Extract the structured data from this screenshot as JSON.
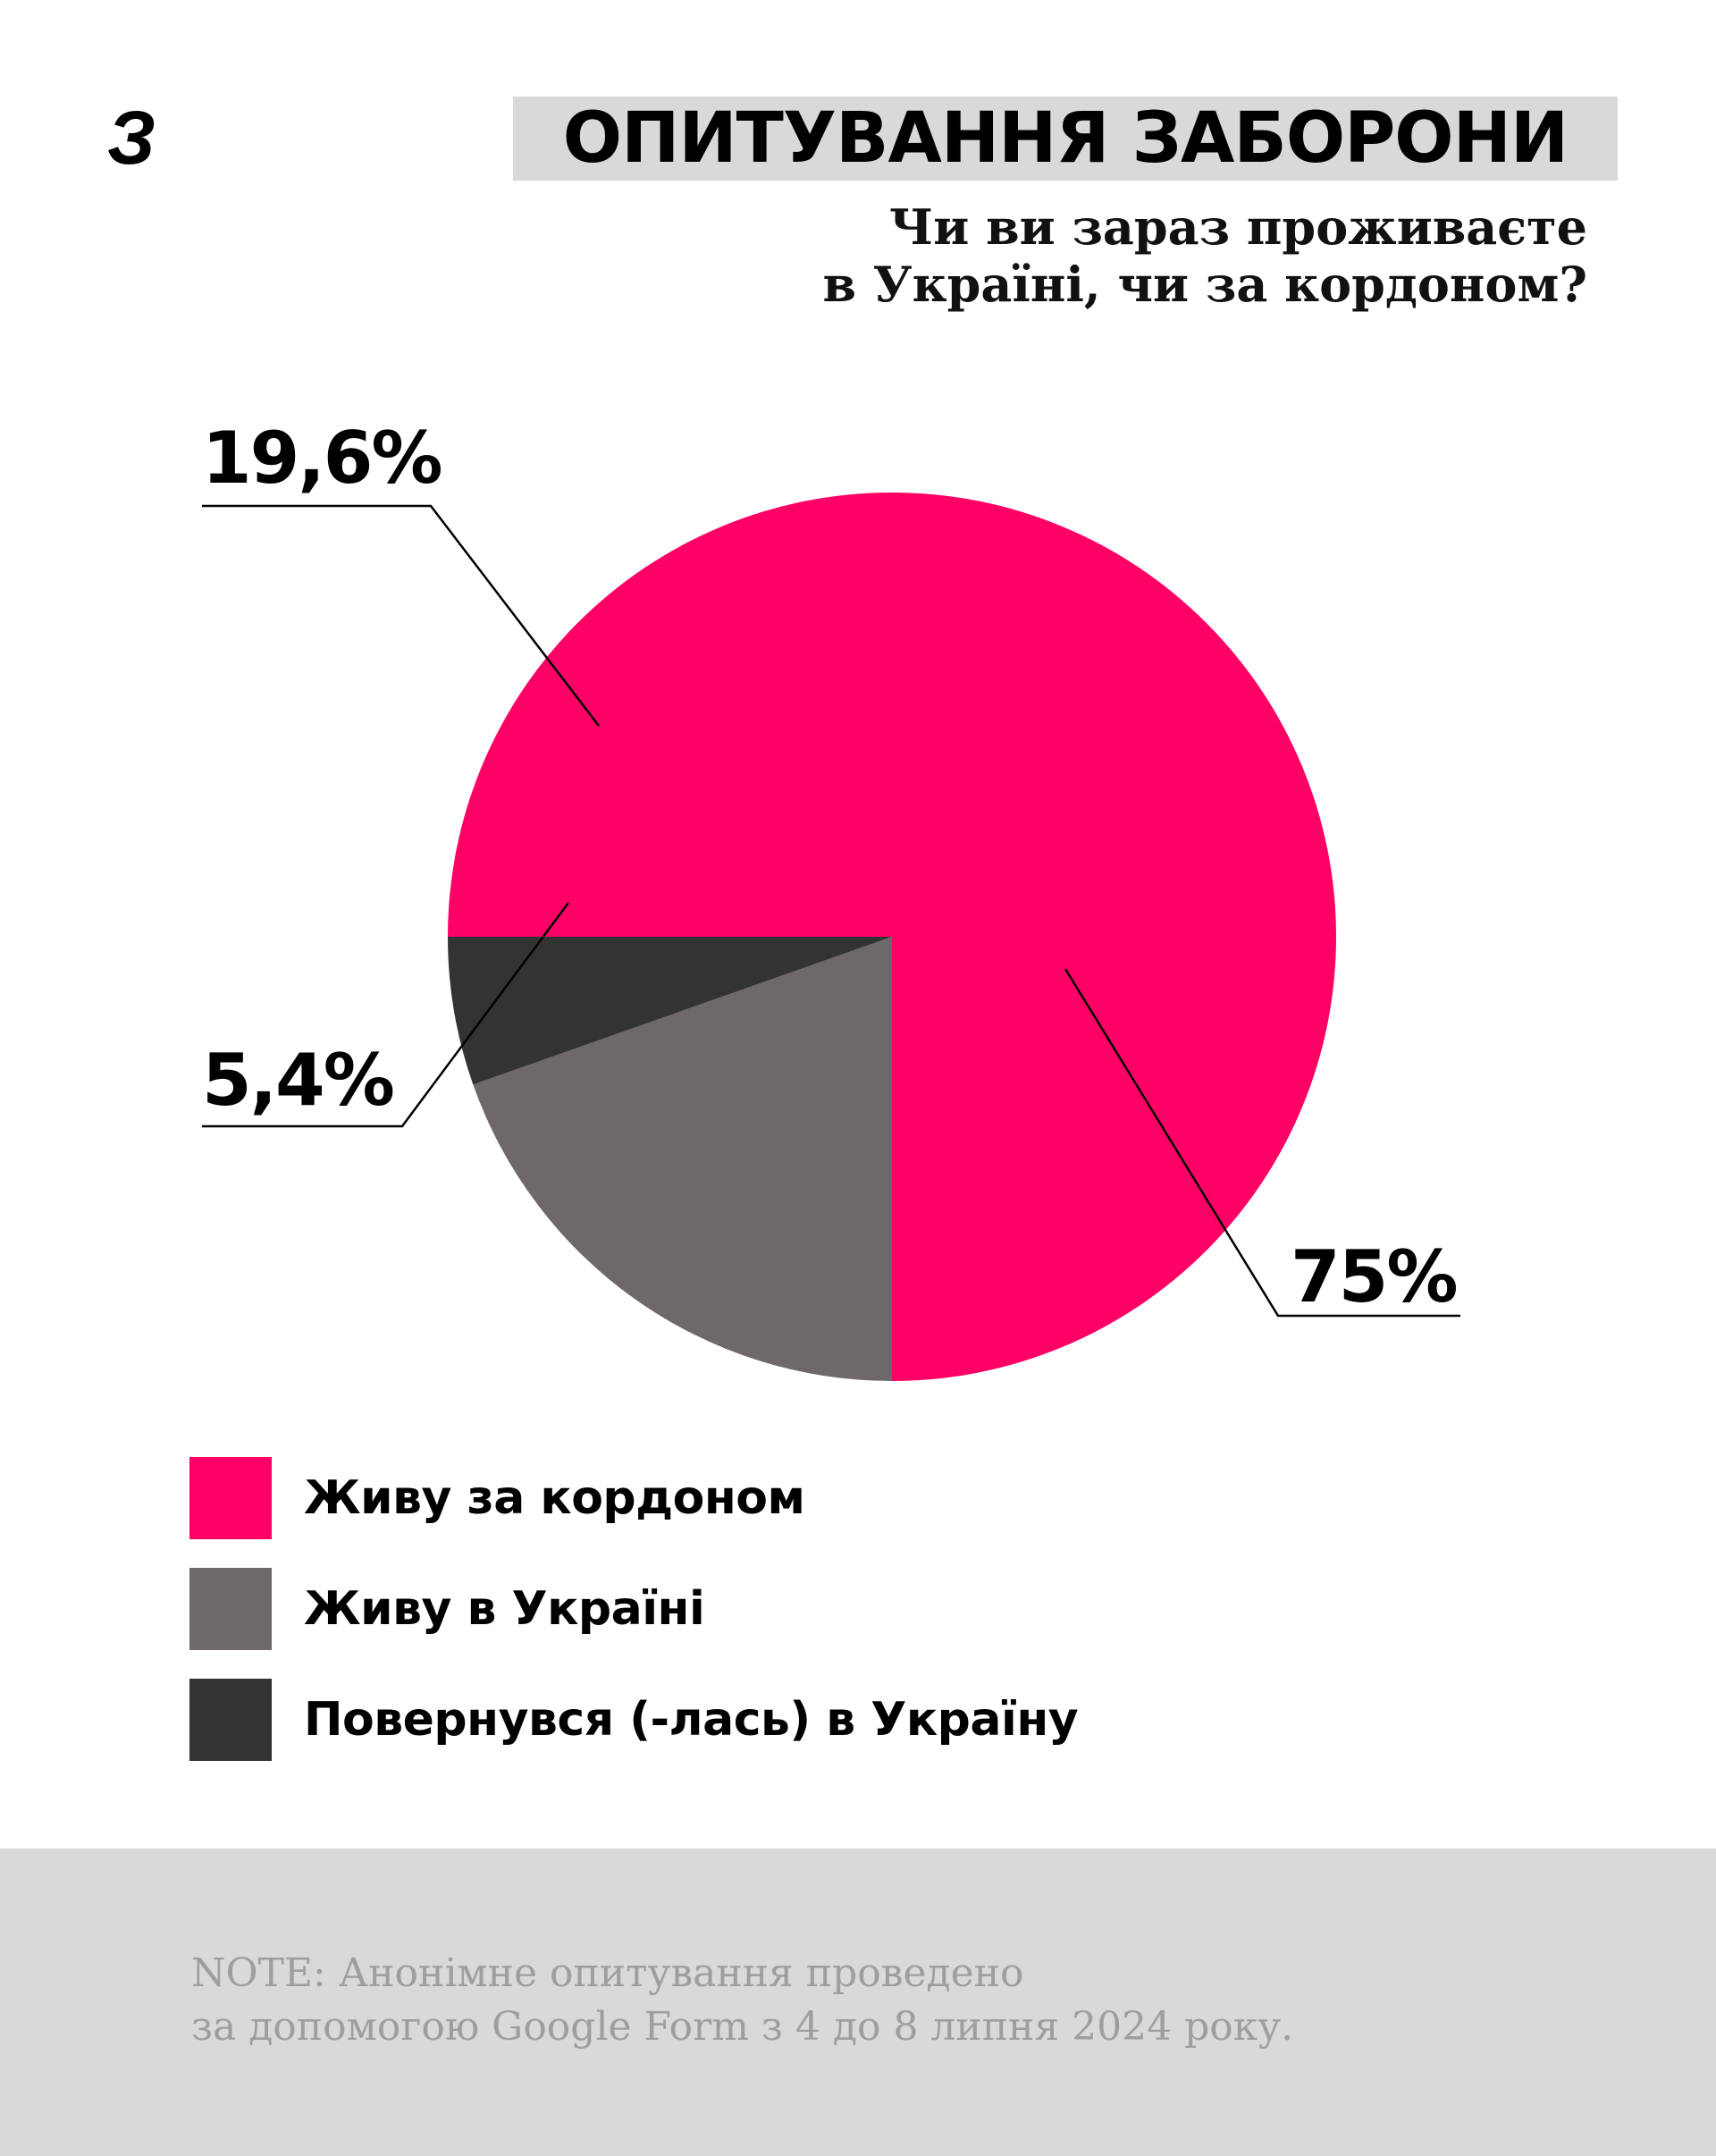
{
  "logo": "З",
  "header": {
    "title": "ОПИТУВАННЯ ЗАБОРОНИ",
    "question_lines": [
      "Чи ви зараз проживаєте",
      "в Україні, чи за кордоном?"
    ]
  },
  "chart_data": {
    "type": "pie",
    "title": "",
    "slices": [
      {
        "label": "Живу за кордоном",
        "value": 75,
        "display": "75%",
        "color": "#ff0066"
      },
      {
        "label": "Живу в Україні",
        "value": 19.6,
        "display": "19,6%",
        "color": "#6e686d"
      },
      {
        "label": "Повернувся (-лась) в Україну",
        "value": 5.4,
        "display": "5,4%",
        "color": "#333333"
      }
    ],
    "legend_position": "bottom-left"
  },
  "legend": [
    {
      "label": "Живу за кордоном",
      "color": "#ff0066"
    },
    {
      "label": "Живу в Україні",
      "color": "#6e686d"
    },
    {
      "label": "Повернувся (-лась) в Україну",
      "color": "#333333"
    }
  ],
  "footer": {
    "note_lines": [
      "NOTE: Анонімне опитування проведено",
      "за допомогою Google Form з 4 до 8 липня 2024 року."
    ]
  }
}
